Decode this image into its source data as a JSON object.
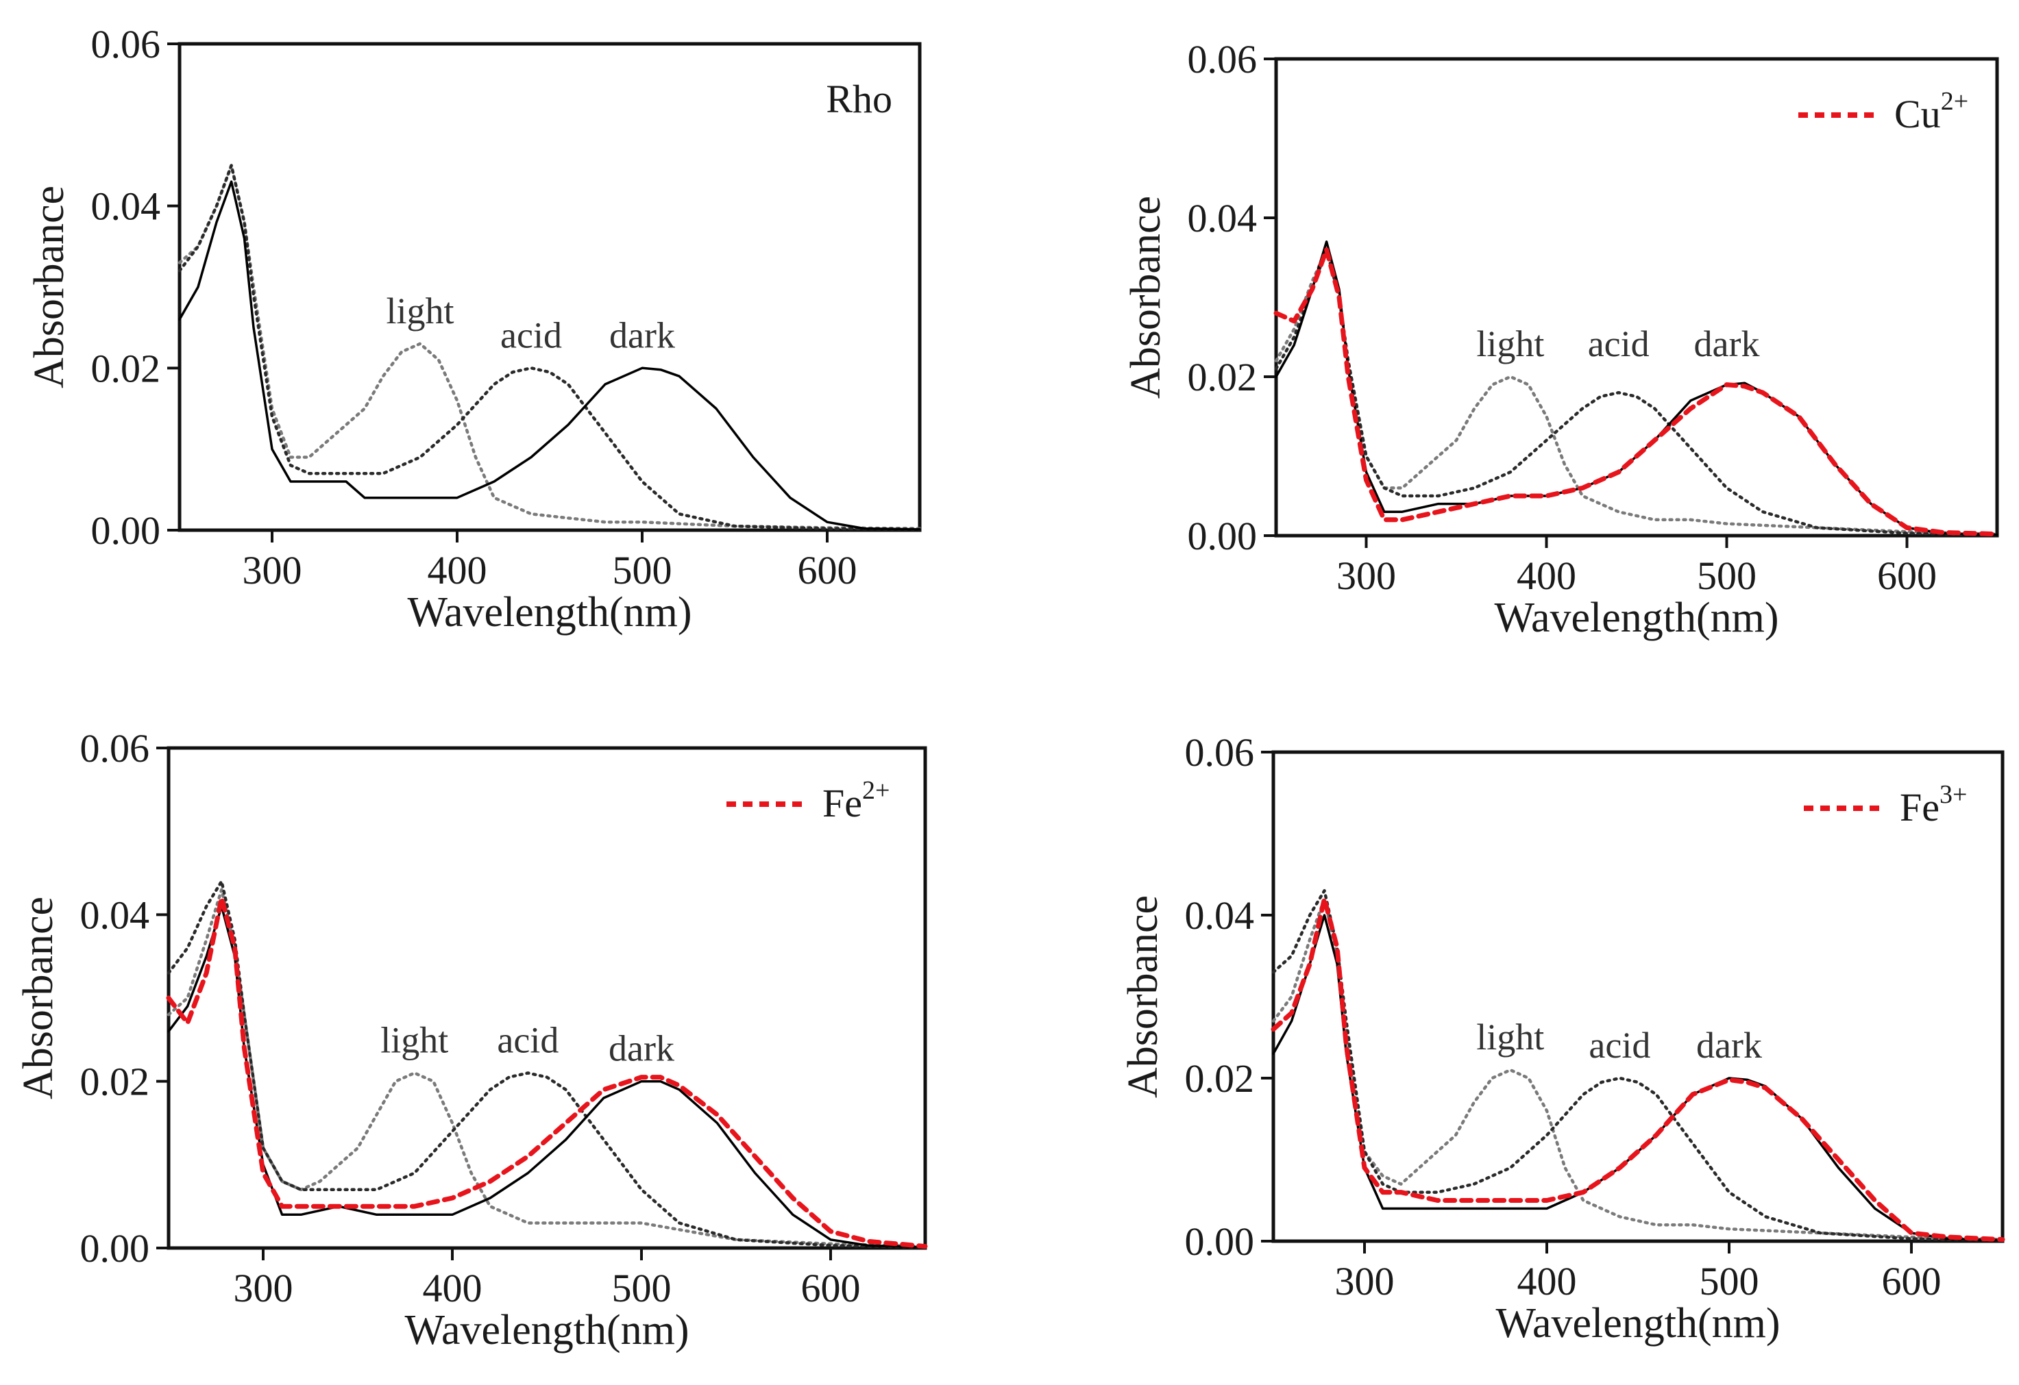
{
  "chart_data": [
    {
      "type": "line",
      "panel": "top-left",
      "xlabel": "Wavelength(nm)",
      "ylabel": "Absorbance",
      "xlim": [
        250,
        650
      ],
      "ylim": [
        0,
        0.06
      ],
      "xticks": [
        "300",
        "400",
        "500",
        "600"
      ],
      "yticks": [
        "0.00",
        "0.02",
        "0.04",
        "0.06"
      ],
      "legend": {
        "text": "Rho",
        "sup": "",
        "placement": "top-right",
        "has_marker": false
      },
      "labels": [
        "light",
        "acid",
        "dark"
      ],
      "series": [
        {
          "name": "light",
          "color": "#7a7a7a",
          "style": "dotted",
          "x": [
            250,
            260,
            270,
            278,
            285,
            290,
            300,
            310,
            320,
            330,
            340,
            350,
            360,
            370,
            380,
            390,
            400,
            410,
            420,
            440,
            460,
            480,
            500,
            550,
            600,
            650
          ],
          "y": [
            0.033,
            0.035,
            0.04,
            0.045,
            0.038,
            0.03,
            0.015,
            0.009,
            0.009,
            0.011,
            0.013,
            0.015,
            0.019,
            0.022,
            0.023,
            0.021,
            0.016,
            0.009,
            0.004,
            0.002,
            0.0015,
            0.001,
            0.001,
            0.0005,
            0.0003,
            0.0002
          ]
        },
        {
          "name": "acid",
          "color": "#2a2a2a",
          "style": "dotted",
          "x": [
            250,
            260,
            270,
            278,
            285,
            290,
            300,
            310,
            320,
            340,
            360,
            380,
            400,
            420,
            430,
            440,
            450,
            460,
            480,
            500,
            520,
            550,
            600,
            650
          ],
          "y": [
            0.032,
            0.035,
            0.04,
            0.045,
            0.038,
            0.029,
            0.014,
            0.008,
            0.007,
            0.007,
            0.007,
            0.009,
            0.013,
            0.018,
            0.0195,
            0.02,
            0.0195,
            0.018,
            0.012,
            0.006,
            0.002,
            0.0005,
            0.0002,
            0.0001
          ]
        },
        {
          "name": "dark",
          "color": "#000000",
          "style": "solid",
          "x": [
            250,
            260,
            270,
            278,
            285,
            290,
            300,
            310,
            320,
            340,
            350,
            360,
            380,
            400,
            420,
            440,
            460,
            480,
            500,
            510,
            520,
            540,
            560,
            580,
            600,
            620,
            650
          ],
          "y": [
            0.026,
            0.03,
            0.038,
            0.043,
            0.036,
            0.025,
            0.01,
            0.006,
            0.006,
            0.006,
            0.004,
            0.004,
            0.004,
            0.004,
            0.006,
            0.009,
            0.013,
            0.018,
            0.02,
            0.0198,
            0.019,
            0.015,
            0.009,
            0.004,
            0.001,
            0.0002,
            0.0001
          ]
        }
      ]
    },
    {
      "type": "line",
      "panel": "top-right",
      "xlabel": "Wavelength(nm)",
      "ylabel": "Absorbance",
      "xlim": [
        250,
        650
      ],
      "ylim": [
        0,
        0.06
      ],
      "xticks": [
        "300",
        "400",
        "500",
        "600"
      ],
      "yticks": [
        "0.00",
        "0.02",
        "0.04",
        "0.06"
      ],
      "legend": {
        "text": "Cu",
        "sup": "2+",
        "placement": "top-right",
        "has_marker": true
      },
      "labels": [
        "light",
        "acid",
        "dark"
      ],
      "series": [
        {
          "name": "light",
          "color": "#7a7a7a",
          "style": "dotted",
          "x": [
            250,
            260,
            270,
            278,
            285,
            290,
            300,
            310,
            320,
            330,
            340,
            350,
            360,
            370,
            380,
            390,
            400,
            410,
            420,
            440,
            460,
            480,
            500,
            550,
            600,
            650
          ],
          "y": [
            0.022,
            0.026,
            0.032,
            0.036,
            0.03,
            0.022,
            0.01,
            0.006,
            0.006,
            0.008,
            0.01,
            0.012,
            0.016,
            0.019,
            0.02,
            0.019,
            0.015,
            0.009,
            0.005,
            0.003,
            0.002,
            0.002,
            0.0015,
            0.001,
            0.0005,
            0.0002
          ]
        },
        {
          "name": "acid",
          "color": "#2a2a2a",
          "style": "dotted",
          "x": [
            250,
            260,
            270,
            278,
            285,
            290,
            300,
            310,
            320,
            340,
            360,
            380,
            400,
            420,
            430,
            440,
            450,
            460,
            480,
            500,
            520,
            550,
            600,
            650
          ],
          "y": [
            0.021,
            0.025,
            0.031,
            0.036,
            0.03,
            0.022,
            0.01,
            0.006,
            0.005,
            0.005,
            0.006,
            0.008,
            0.012,
            0.016,
            0.0175,
            0.018,
            0.0175,
            0.016,
            0.011,
            0.006,
            0.003,
            0.001,
            0.0003,
            0.0001
          ]
        },
        {
          "name": "dark",
          "color": "#000000",
          "style": "solid",
          "x": [
            250,
            260,
            270,
            278,
            285,
            290,
            300,
            310,
            320,
            340,
            360,
            380,
            400,
            420,
            440,
            460,
            480,
            500,
            510,
            520,
            540,
            560,
            580,
            600,
            620,
            650
          ],
          "y": [
            0.02,
            0.024,
            0.031,
            0.037,
            0.031,
            0.021,
            0.008,
            0.003,
            0.003,
            0.004,
            0.004,
            0.005,
            0.005,
            0.006,
            0.008,
            0.012,
            0.017,
            0.019,
            0.0192,
            0.018,
            0.015,
            0.009,
            0.004,
            0.001,
            0.0003,
            0.0001
          ]
        },
        {
          "name": "Cu2+",
          "color": "#e8141c",
          "style": "dashed",
          "x": [
            250,
            260,
            270,
            278,
            285,
            290,
            300,
            310,
            320,
            340,
            360,
            380,
            400,
            420,
            440,
            460,
            480,
            500,
            510,
            520,
            540,
            560,
            580,
            600,
            620,
            650
          ],
          "y": [
            0.028,
            0.027,
            0.031,
            0.036,
            0.03,
            0.02,
            0.007,
            0.002,
            0.002,
            0.003,
            0.004,
            0.005,
            0.005,
            0.006,
            0.008,
            0.012,
            0.016,
            0.019,
            0.0188,
            0.018,
            0.015,
            0.009,
            0.004,
            0.001,
            0.0004,
            0.0002
          ]
        }
      ]
    },
    {
      "type": "line",
      "panel": "bottom-left",
      "xlabel": "Wavelength(nm)",
      "ylabel": "Absorbance",
      "xlim": [
        250,
        650
      ],
      "ylim": [
        0,
        0.06
      ],
      "xticks": [
        "300",
        "400",
        "500",
        "600"
      ],
      "yticks": [
        "0.00",
        "0.02",
        "0.04",
        "0.06"
      ],
      "legend": {
        "text": "Fe",
        "sup": "2+",
        "placement": "top-right",
        "has_marker": true
      },
      "labels": [
        "light",
        "acid",
        "dark"
      ],
      "series": [
        {
          "name": "light",
          "color": "#7a7a7a",
          "style": "dotted",
          "x": [
            250,
            260,
            270,
            278,
            285,
            290,
            300,
            310,
            320,
            330,
            340,
            350,
            360,
            370,
            380,
            390,
            400,
            410,
            420,
            440,
            460,
            480,
            500,
            550,
            600,
            650
          ],
          "y": [
            0.028,
            0.03,
            0.037,
            0.043,
            0.036,
            0.028,
            0.012,
            0.008,
            0.007,
            0.008,
            0.01,
            0.012,
            0.016,
            0.02,
            0.021,
            0.02,
            0.015,
            0.009,
            0.005,
            0.003,
            0.003,
            0.003,
            0.003,
            0.001,
            0.0005,
            0.0002
          ]
        },
        {
          "name": "acid",
          "color": "#2a2a2a",
          "style": "dotted",
          "x": [
            250,
            260,
            270,
            278,
            285,
            290,
            300,
            310,
            320,
            340,
            360,
            380,
            400,
            420,
            430,
            440,
            450,
            460,
            480,
            500,
            520,
            550,
            600,
            650
          ],
          "y": [
            0.033,
            0.036,
            0.041,
            0.044,
            0.037,
            0.028,
            0.012,
            0.008,
            0.007,
            0.007,
            0.007,
            0.009,
            0.014,
            0.019,
            0.0205,
            0.021,
            0.0205,
            0.019,
            0.013,
            0.007,
            0.003,
            0.001,
            0.0003,
            0.0001
          ]
        },
        {
          "name": "dark",
          "color": "#000000",
          "style": "solid",
          "x": [
            250,
            260,
            270,
            278,
            285,
            290,
            300,
            310,
            320,
            340,
            360,
            380,
            400,
            420,
            440,
            460,
            480,
            500,
            510,
            520,
            540,
            560,
            580,
            600,
            620,
            650
          ],
          "y": [
            0.026,
            0.029,
            0.035,
            0.041,
            0.035,
            0.024,
            0.01,
            0.004,
            0.004,
            0.005,
            0.004,
            0.004,
            0.004,
            0.006,
            0.009,
            0.013,
            0.018,
            0.02,
            0.02,
            0.019,
            0.015,
            0.009,
            0.004,
            0.001,
            0.0003,
            0.0001
          ]
        },
        {
          "name": "Fe2+",
          "color": "#e8141c",
          "style": "dashed",
          "x": [
            250,
            260,
            270,
            278,
            285,
            290,
            300,
            310,
            320,
            340,
            360,
            380,
            400,
            420,
            440,
            460,
            480,
            500,
            510,
            520,
            540,
            560,
            580,
            600,
            620,
            650
          ],
          "y": [
            0.03,
            0.027,
            0.033,
            0.042,
            0.036,
            0.024,
            0.009,
            0.005,
            0.005,
            0.005,
            0.005,
            0.005,
            0.006,
            0.008,
            0.011,
            0.015,
            0.019,
            0.0205,
            0.0205,
            0.0195,
            0.016,
            0.011,
            0.006,
            0.002,
            0.0008,
            0.0002
          ]
        }
      ]
    },
    {
      "type": "line",
      "panel": "bottom-right",
      "xlabel": "Wavelength(nm)",
      "ylabel": "Absorbance",
      "xlim": [
        250,
        650
      ],
      "ylim": [
        0,
        0.06
      ],
      "xticks": [
        "300",
        "400",
        "500",
        "600"
      ],
      "yticks": [
        "0.00",
        "0.02",
        "0.04",
        "0.06"
      ],
      "legend": {
        "text": "Fe",
        "sup": "3+",
        "placement": "top-right",
        "has_marker": true
      },
      "labels": [
        "light",
        "acid",
        "dark"
      ],
      "series": [
        {
          "name": "light",
          "color": "#7a7a7a",
          "style": "dotted",
          "x": [
            250,
            260,
            270,
            278,
            285,
            290,
            300,
            310,
            320,
            330,
            340,
            350,
            360,
            370,
            380,
            390,
            400,
            410,
            420,
            440,
            460,
            480,
            500,
            550,
            600,
            650
          ],
          "y": [
            0.027,
            0.03,
            0.037,
            0.042,
            0.035,
            0.026,
            0.011,
            0.008,
            0.007,
            0.009,
            0.011,
            0.013,
            0.017,
            0.02,
            0.021,
            0.02,
            0.016,
            0.009,
            0.005,
            0.003,
            0.002,
            0.002,
            0.0015,
            0.001,
            0.0005,
            0.0002
          ]
        },
        {
          "name": "acid",
          "color": "#2a2a2a",
          "style": "dotted",
          "x": [
            250,
            260,
            270,
            278,
            285,
            290,
            300,
            310,
            320,
            340,
            360,
            380,
            400,
            420,
            430,
            440,
            450,
            460,
            480,
            500,
            520,
            550,
            600,
            650
          ],
          "y": [
            0.033,
            0.035,
            0.04,
            0.043,
            0.036,
            0.027,
            0.011,
            0.007,
            0.006,
            0.006,
            0.007,
            0.009,
            0.013,
            0.018,
            0.0195,
            0.02,
            0.0195,
            0.018,
            0.012,
            0.006,
            0.003,
            0.001,
            0.0003,
            0.0001
          ]
        },
        {
          "name": "dark",
          "color": "#000000",
          "style": "solid",
          "x": [
            250,
            260,
            270,
            278,
            285,
            290,
            300,
            310,
            320,
            340,
            360,
            380,
            400,
            420,
            440,
            460,
            480,
            500,
            510,
            520,
            540,
            560,
            580,
            600,
            620,
            650
          ],
          "y": [
            0.023,
            0.027,
            0.034,
            0.04,
            0.034,
            0.023,
            0.009,
            0.004,
            0.004,
            0.004,
            0.004,
            0.004,
            0.004,
            0.006,
            0.009,
            0.013,
            0.018,
            0.02,
            0.0198,
            0.019,
            0.015,
            0.009,
            0.004,
            0.001,
            0.0003,
            0.0001
          ]
        },
        {
          "name": "Fe3+",
          "color": "#e8141c",
          "style": "dashed",
          "x": [
            250,
            260,
            270,
            278,
            285,
            290,
            300,
            310,
            320,
            340,
            360,
            380,
            400,
            420,
            440,
            460,
            480,
            500,
            510,
            520,
            540,
            560,
            580,
            600,
            620,
            650
          ],
          "y": [
            0.026,
            0.028,
            0.034,
            0.042,
            0.036,
            0.024,
            0.009,
            0.006,
            0.006,
            0.005,
            0.005,
            0.005,
            0.005,
            0.006,
            0.009,
            0.013,
            0.018,
            0.0198,
            0.0195,
            0.0188,
            0.015,
            0.01,
            0.005,
            0.001,
            0.0005,
            0.0002
          ]
        }
      ]
    }
  ]
}
